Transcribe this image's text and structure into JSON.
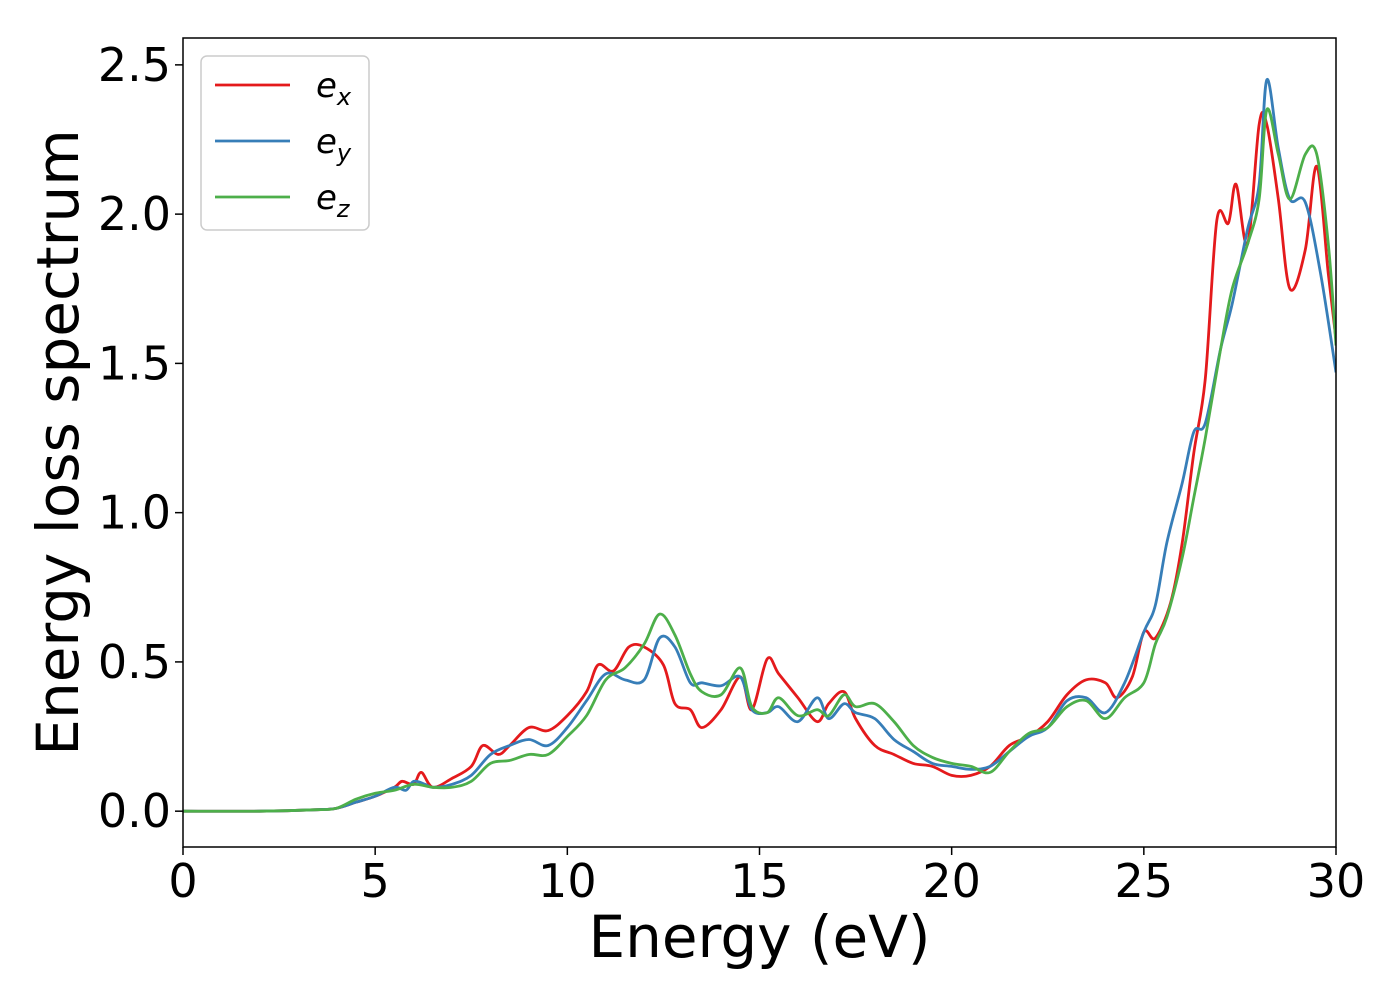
{
  "chart_data": {
    "type": "line",
    "title": "",
    "xlabel": "Energy (eV)",
    "ylabel": "Energy loss spectrum",
    "xlim": [
      0,
      30
    ],
    "ylim": [
      -0.12,
      2.59
    ],
    "xticks": [
      0,
      5,
      10,
      15,
      20,
      25,
      30
    ],
    "xtick_labels": [
      "0",
      "5",
      "10",
      "15",
      "20",
      "25",
      "30"
    ],
    "yticks": [
      0.0,
      0.5,
      1.0,
      1.5,
      2.0,
      2.5
    ],
    "ytick_labels": [
      "0.0",
      "0.5",
      "1.0",
      "1.5",
      "2.0",
      "2.5"
    ],
    "grid": false,
    "legend_position": "top-left",
    "series": [
      {
        "name": "e_x",
        "legend_base": "e",
        "legend_sub": "x",
        "color": "#e41a1c",
        "x": [
          0,
          2,
          3.5,
          4,
          4.5,
          5,
          5.5,
          5.7,
          6,
          6.2,
          6.5,
          7,
          7.5,
          7.8,
          8.2,
          8.5,
          9,
          9.5,
          10,
          10.5,
          10.8,
          11.2,
          11.6,
          12,
          12.5,
          12.8,
          13.2,
          13.5,
          14,
          14.5,
          14.8,
          15.2,
          15.5,
          16,
          16.5,
          16.8,
          17.2,
          17.5,
          18,
          18.5,
          19,
          19.5,
          20,
          20.5,
          21,
          21.5,
          22,
          22.5,
          23,
          23.5,
          24,
          24.3,
          24.7,
          25,
          25.3,
          25.7,
          26,
          26.3,
          26.6,
          26.9,
          27.2,
          27.4,
          27.7,
          28,
          28.2,
          28.5,
          28.8,
          29.2,
          29.5,
          29.8,
          30
        ],
        "y": [
          0,
          0,
          0.005,
          0.01,
          0.03,
          0.05,
          0.08,
          0.1,
          0.09,
          0.13,
          0.08,
          0.11,
          0.15,
          0.22,
          0.19,
          0.22,
          0.28,
          0.27,
          0.32,
          0.4,
          0.49,
          0.47,
          0.55,
          0.55,
          0.49,
          0.36,
          0.34,
          0.28,
          0.34,
          0.45,
          0.34,
          0.51,
          0.46,
          0.38,
          0.3,
          0.36,
          0.4,
          0.31,
          0.22,
          0.19,
          0.16,
          0.15,
          0.12,
          0.12,
          0.15,
          0.22,
          0.25,
          0.3,
          0.39,
          0.44,
          0.43,
          0.38,
          0.45,
          0.6,
          0.58,
          0.7,
          0.9,
          1.2,
          1.45,
          1.98,
          1.97,
          2.1,
          1.9,
          2.3,
          2.3,
          2.05,
          1.75,
          1.88,
          2.16,
          1.8,
          1.58
        ]
      },
      {
        "name": "e_y",
        "legend_base": "e",
        "legend_sub": "y",
        "color": "#377eb8",
        "x": [
          0,
          2,
          3.5,
          4,
          4.5,
          5,
          5.5,
          5.8,
          6,
          6.3,
          6.5,
          7,
          7.5,
          8,
          8.5,
          9,
          9.5,
          10,
          10.5,
          11,
          11.5,
          12,
          12.4,
          12.8,
          13.2,
          13.5,
          14,
          14.5,
          14.8,
          15.2,
          15.5,
          16,
          16.5,
          16.8,
          17.2,
          17.5,
          18,
          18.5,
          19,
          19.5,
          20,
          20.5,
          21,
          21.5,
          22,
          22.5,
          23,
          23.5,
          24,
          24.5,
          25,
          25.3,
          25.6,
          26,
          26.3,
          26.6,
          27,
          27.3,
          27.7,
          28,
          28.2,
          28.5,
          28.8,
          29.2,
          29.6,
          30
        ],
        "y": [
          0,
          0,
          0.005,
          0.01,
          0.03,
          0.05,
          0.08,
          0.07,
          0.1,
          0.09,
          0.08,
          0.09,
          0.12,
          0.19,
          0.22,
          0.24,
          0.22,
          0.28,
          0.37,
          0.46,
          0.44,
          0.44,
          0.58,
          0.55,
          0.43,
          0.43,
          0.42,
          0.45,
          0.34,
          0.33,
          0.35,
          0.3,
          0.38,
          0.31,
          0.36,
          0.33,
          0.31,
          0.24,
          0.2,
          0.16,
          0.15,
          0.14,
          0.15,
          0.2,
          0.25,
          0.28,
          0.37,
          0.38,
          0.33,
          0.43,
          0.6,
          0.69,
          0.9,
          1.1,
          1.27,
          1.3,
          1.55,
          1.7,
          1.95,
          2.1,
          2.45,
          2.22,
          2.05,
          2.04,
          1.8,
          1.47
        ]
      },
      {
        "name": "e_z",
        "legend_base": "e",
        "legend_sub": "z",
        "color": "#4daf4a",
        "x": [
          0,
          2,
          3.5,
          4,
          4.5,
          5,
          5.5,
          6,
          6.5,
          7,
          7.5,
          8,
          8.5,
          9,
          9.5,
          10,
          10.5,
          11,
          11.5,
          12,
          12.4,
          12.8,
          13.2,
          13.5,
          14,
          14.5,
          14.8,
          15.2,
          15.5,
          16,
          16.5,
          16.8,
          17.2,
          17.5,
          18,
          18.5,
          19,
          19.5,
          20,
          20.5,
          21,
          21.5,
          22,
          22.5,
          23,
          23.5,
          24,
          24.5,
          25,
          25.3,
          25.6,
          26,
          26.3,
          26.6,
          27,
          27.3,
          27.7,
          28,
          28.2,
          28.5,
          28.8,
          29.2,
          29.5,
          29.8,
          30
        ],
        "y": [
          0,
          0,
          0.005,
          0.01,
          0.04,
          0.06,
          0.07,
          0.09,
          0.08,
          0.08,
          0.1,
          0.16,
          0.17,
          0.19,
          0.19,
          0.25,
          0.32,
          0.44,
          0.48,
          0.56,
          0.66,
          0.59,
          0.46,
          0.4,
          0.39,
          0.48,
          0.35,
          0.33,
          0.38,
          0.32,
          0.34,
          0.32,
          0.39,
          0.35,
          0.36,
          0.3,
          0.22,
          0.18,
          0.16,
          0.15,
          0.13,
          0.2,
          0.26,
          0.28,
          0.35,
          0.37,
          0.31,
          0.38,
          0.43,
          0.56,
          0.65,
          0.85,
          1.05,
          1.25,
          1.55,
          1.75,
          1.9,
          2.05,
          2.35,
          2.2,
          2.05,
          2.2,
          2.2,
          1.9,
          1.56
        ]
      }
    ]
  }
}
